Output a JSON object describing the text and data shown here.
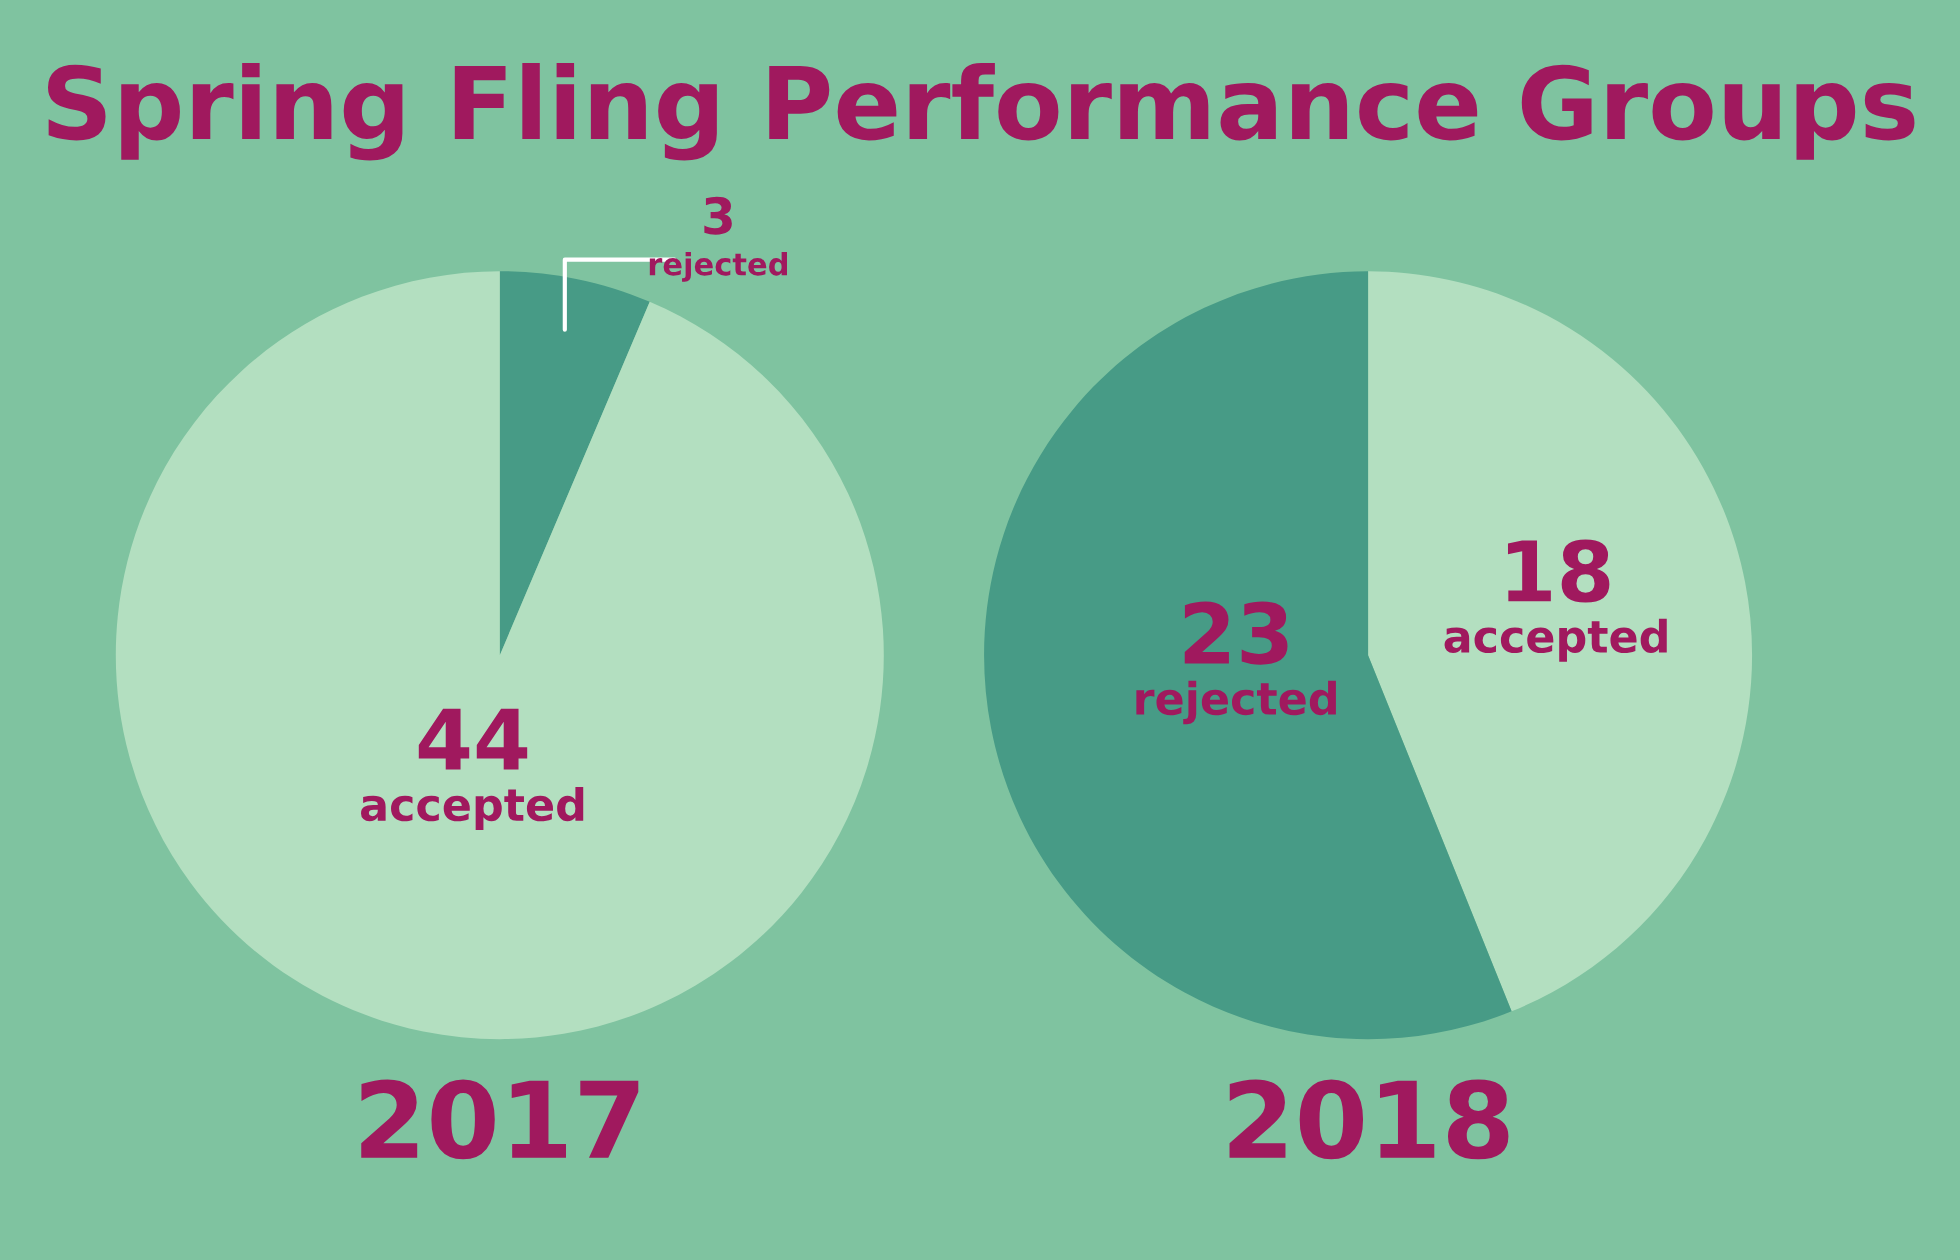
{
  "chart_data": [
    {
      "type": "pie",
      "title": "Spring Fling Performance Groups",
      "xlabel": "2017",
      "categories": [
        "rejected",
        "accepted"
      ],
      "values": [
        3,
        44
      ],
      "colors": [
        "#479b86",
        "#b3dfc0"
      ],
      "data_labels": true
    },
    {
      "type": "pie",
      "xlabel": "2018",
      "categories": [
        "accepted",
        "rejected"
      ],
      "values": [
        18,
        23
      ],
      "colors": [
        "#b3dfc0",
        "#479b86"
      ],
      "data_labels": true
    }
  ]
}
